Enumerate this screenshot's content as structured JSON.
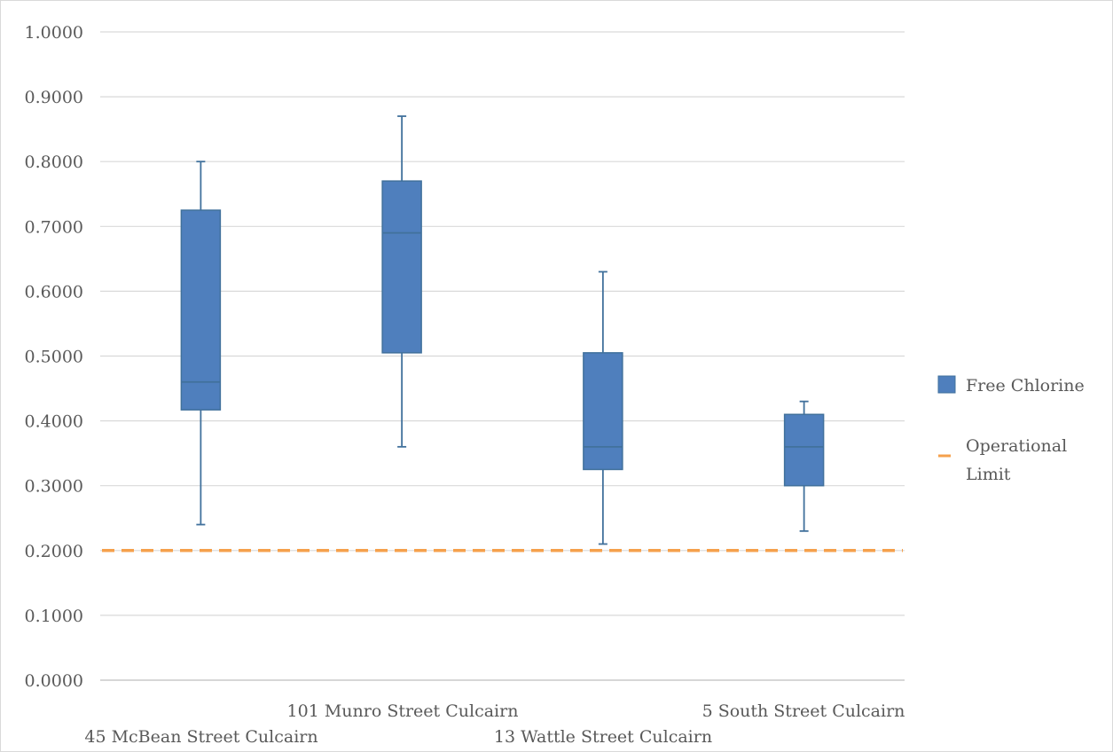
{
  "chart_data": {
    "type": "box",
    "ylim": [
      0,
      1
    ],
    "y_ticks": [
      "0.0000",
      "0.1000",
      "0.2000",
      "0.3000",
      "0.4000",
      "0.5000",
      "0.6000",
      "0.7000",
      "0.8000",
      "0.9000",
      "1.0000"
    ],
    "grid": true,
    "categories": [
      "45 McBean Street Culcairn",
      "101 Munro Street Culcairn",
      "13 Wattle Street Culcairn",
      "5 South Street Culcairn"
    ],
    "series": [
      {
        "name": "Free Chlorine",
        "color": "#4f7fbd",
        "boxes": [
          {
            "min": 0.24,
            "q1": 0.417,
            "median": 0.46,
            "q3": 0.725,
            "max": 0.8
          },
          {
            "min": 0.36,
            "q1": 0.505,
            "median": 0.69,
            "q3": 0.77,
            "max": 0.87
          },
          {
            "min": 0.21,
            "q1": 0.325,
            "median": 0.36,
            "q3": 0.505,
            "max": 0.63
          },
          {
            "min": 0.23,
            "q1": 0.3,
            "median": 0.36,
            "q3": 0.41,
            "max": 0.43
          }
        ]
      }
    ],
    "reference_lines": [
      {
        "name": "Operational Limit",
        "value": 0.2,
        "color": "#f5a04c",
        "style": "dashed"
      }
    ],
    "legend": {
      "position": "right",
      "free_chlorine": "Free Chlorine",
      "operational_limit_line1": "Operational",
      "operational_limit_line2": "Limit"
    }
  }
}
